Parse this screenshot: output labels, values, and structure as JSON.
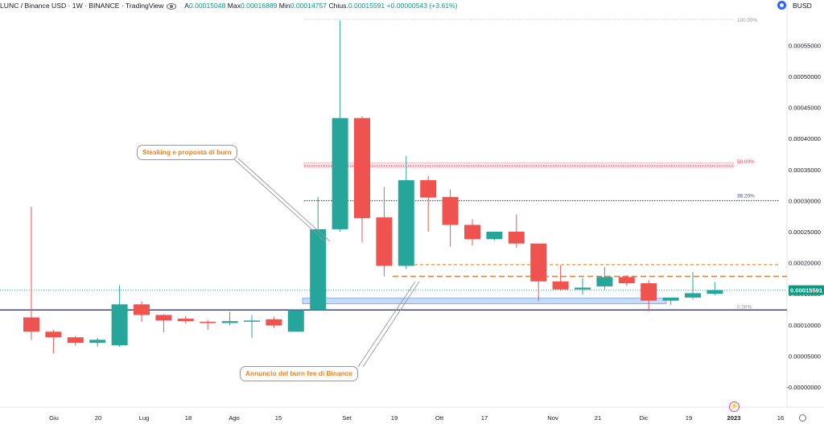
{
  "header": {
    "symbol": "LUNC / Binance USD · 1W · BINANCE · TradingView",
    "open_label": "A",
    "open_value": "0.00015048",
    "high_label": "Max",
    "high_value": "0.00016889",
    "low_label": "Min",
    "low_value": "0.00014757",
    "close_label": "Chius.",
    "close_value": "0.00015591",
    "change_value": "+0.00000543 (+3.61%)",
    "eye_icon": "eye-icon"
  },
  "currency": {
    "label": "BUSD",
    "icon": "currency-circle-icon"
  },
  "colors": {
    "up": "#26a69a",
    "down": "#ef5350",
    "price_line": "#089981",
    "fib_50": "#f23645",
    "fib_382": "#1e3a8a",
    "orange": "#f57f17",
    "support": "#1a237e",
    "zone": "#c7dbf9"
  },
  "annotations": {
    "callout_1": "Steaking e proposta di burn",
    "callout_2": "Annuncio del burn fee di Binance",
    "fib_100": "100.00%",
    "fib_50": "50.00%",
    "fib_382": "38.20%",
    "fib_0": "0.00%"
  },
  "price_label": "0.00015591",
  "chart_data": {
    "type": "candlestick",
    "ylim": [
      0,
      0.0006
    ],
    "y_ticks": [
      "0.00055000",
      "0.00050000",
      "0.00045000",
      "0.00040000",
      "0.00035000",
      "0.00030000",
      "0.00025000",
      "0.00020000",
      "0.00015000",
      "0.00010000",
      "0.00005000",
      "-0.00000000"
    ],
    "y_tick_values": [
      0.00055,
      0.0005,
      0.00045,
      0.0004,
      0.00035,
      0.0003,
      0.00025,
      0.0002,
      0.00015,
      0.0001,
      5e-05,
      0
    ],
    "x_labels": [
      "Giu",
      "20",
      "Lug",
      "18",
      "Ago",
      "15",
      "Set",
      "19",
      "Ott",
      "17",
      "Nov",
      "21",
      "Dic",
      "19",
      "2023",
      "16"
    ],
    "candles": [
      {
        "o": 0.000112,
        "h": 0.00029,
        "l": 7.6e-05,
        "c": 8.9e-05
      },
      {
        "o": 8.9e-05,
        "h": 9.2e-05,
        "l": 5.4e-05,
        "c": 8e-05
      },
      {
        "o": 8e-05,
        "h": 8.2e-05,
        "l": 6.7e-05,
        "c": 7.1e-05
      },
      {
        "o": 7.1e-05,
        "h": 7.9e-05,
        "l": 6.5e-05,
        "c": 7.6e-05
      },
      {
        "o": 6.7e-05,
        "h": 0.000164,
        "l": 6.5e-05,
        "c": 0.000133
      },
      {
        "o": 0.000133,
        "h": 0.000138,
        "l": 0.000105,
        "c": 0.000116
      },
      {
        "o": 0.000116,
        "h": 0.000117,
        "l": 8.8e-05,
        "c": 0.000107
      },
      {
        "o": 0.00011,
        "h": 0.000114,
        "l": 0.000102,
        "c": 0.000106
      },
      {
        "o": 0.000105,
        "h": 0.000108,
        "l": 9.2e-05,
        "c": 0.000103
      },
      {
        "o": 0.000103,
        "h": 0.000121,
        "l": 9.9e-05,
        "c": 0.000106
      },
      {
        "o": 0.000106,
        "h": 0.000116,
        "l": 7.9e-05,
        "c": 0.000107
      },
      {
        "o": 0.000109,
        "h": 0.000113,
        "l": 9.5e-05,
        "c": 9.9e-05
      },
      {
        "o": 8.9e-05,
        "h": 0.000124,
        "l": 8.9e-05,
        "c": 0.000124
      },
      {
        "o": 0.000124,
        "h": 0.000306,
        "l": 0.000124,
        "c": 0.000254
      },
      {
        "o": 0.000254,
        "h": 0.00059,
        "l": 0.00025,
        "c": 0.000433
      },
      {
        "o": 0.000433,
        "h": 0.000436,
        "l": 0.000233,
        "c": 0.000272
      },
      {
        "o": 0.000273,
        "h": 0.000322,
        "l": 0.000178,
        "c": 0.000195
      },
      {
        "o": 0.000195,
        "h": 0.000372,
        "l": 0.00019,
        "c": 0.000333
      },
      {
        "o": 0.000333,
        "h": 0.00034,
        "l": 0.00025,
        "c": 0.000305
      },
      {
        "o": 0.000306,
        "h": 0.000318,
        "l": 0.000226,
        "c": 0.000261
      },
      {
        "o": 0.000261,
        "h": 0.00027,
        "l": 0.000228,
        "c": 0.000238
      },
      {
        "o": 0.000238,
        "h": 0.00025,
        "l": 0.000236,
        "c": 0.00025
      },
      {
        "o": 0.00025,
        "h": 0.000278,
        "l": 0.000224,
        "c": 0.000231
      },
      {
        "o": 0.000231,
        "h": 0.000231,
        "l": 0.000138,
        "c": 0.00017
      },
      {
        "o": 0.00017,
        "h": 0.000196,
        "l": 0.000155,
        "c": 0.000157
      },
      {
        "o": 0.000157,
        "h": 0.000175,
        "l": 0.000149,
        "c": 0.00016
      },
      {
        "o": 0.000162,
        "h": 0.000193,
        "l": 0.000157,
        "c": 0.000177
      },
      {
        "o": 0.000177,
        "h": 0.00018,
        "l": 0.000163,
        "c": 0.000167
      },
      {
        "o": 0.000167,
        "h": 0.000172,
        "l": 0.000122,
        "c": 0.000139
      },
      {
        "o": 0.000139,
        "h": 0.000143,
        "l": 0.000132,
        "c": 0.000144
      },
      {
        "o": 0.000144,
        "h": 0.000185,
        "l": 0.000141,
        "c": 0.000151
      },
      {
        "o": 0.00015,
        "h": 0.000169,
        "l": 0.000148,
        "c": 0.000156
      }
    ],
    "fib_levels": {
      "p100": 0.000592,
      "p50": 0.000356,
      "p382": 0.0003,
      "p0": 0.000124
    },
    "orange_levels": {
      "upper": 0.000197,
      "lower": 0.000178
    },
    "support_level": 0.000124,
    "zone": {
      "top": 0.000143,
      "bottom": 0.000134
    },
    "last_price": 0.00015591
  }
}
